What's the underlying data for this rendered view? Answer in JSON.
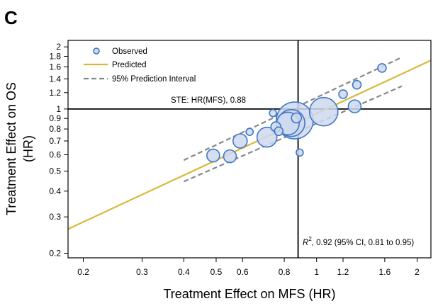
{
  "panel_label": "C",
  "chart_data": {
    "type": "scatter",
    "xscale": "log",
    "yscale": "log",
    "xlim": [
      0.18,
      2.2
    ],
    "ylim": [
      0.19,
      2.15
    ],
    "xlabel": "Treatment Effect on MFS (HR)",
    "ylabel_line1": "Treatment Effect on OS",
    "ylabel_line2": "(HR)",
    "xticks": [
      0.2,
      0.3,
      0.4,
      0.5,
      0.6,
      0.8,
      1,
      1.2,
      1.6,
      2
    ],
    "xtick_labels": [
      "0.2",
      "0.3",
      "0.4",
      "0.5",
      "0.6",
      "0.8",
      "1",
      "1.2",
      "1.6",
      "2"
    ],
    "yticks": [
      0.2,
      0.3,
      0.4,
      0.5,
      0.6,
      0.7,
      0.8,
      0.9,
      1,
      1.2,
      1.4,
      1.6,
      1.8,
      2
    ],
    "ytick_labels": [
      "0.2",
      "0.3",
      "0.4",
      "0.5",
      "0.6",
      "0.7",
      "0.8",
      "0.9",
      "1",
      "1.2",
      "1.4",
      "1.6",
      "1.8",
      "2"
    ],
    "legend": {
      "position": "top-left",
      "entries": [
        {
          "label": "Observed",
          "kind": "circle"
        },
        {
          "label": "Predicted",
          "kind": "solid-line"
        },
        {
          "label": "95% Prediction Interval",
          "kind": "dashed-line"
        }
      ]
    },
    "colors": {
      "marker_fill": "#cfd8ee",
      "marker_stroke": "#3f78c4",
      "predicted_line": "#d9b93a",
      "interval_line": "#888888",
      "reference_line": "#000000"
    },
    "reference_lines": {
      "x": 0.88,
      "y": 1
    },
    "ste_annotation": "STE: HR(MFS), 0.88",
    "r2_annotation": {
      "symbol": "R",
      "superscript": "2",
      "text": ", 0.92 (95% CI, 0.81 to 0.95)"
    },
    "predicted": {
      "x": [
        0.18,
        2.2
      ],
      "y": [
        0.262,
        1.72
      ]
    },
    "prediction_interval_upper": {
      "x": [
        0.4,
        1.8
      ],
      "y": [
        0.565,
        1.78
      ]
    },
    "prediction_interval_lower": {
      "x": [
        0.4,
        1.8
      ],
      "y": [
        0.445,
        1.29
      ]
    },
    "series": [
      {
        "x": [
          0.49,
          0.55,
          0.59,
          0.63,
          0.71,
          0.74,
          0.77,
          0.755,
          0.82,
          0.86,
          0.84,
          0.87,
          0.89,
          1.05,
          1.2,
          1.3,
          1.32,
          1.57
        ],
        "y": [
          0.595,
          0.59,
          0.7,
          0.775,
          0.73,
          0.955,
          0.78,
          0.82,
          0.85,
          0.88,
          0.855,
          0.905,
          0.615,
          0.97,
          1.18,
          1.03,
          1.31,
          1.58
        ],
        "size": [
          9,
          9,
          10,
          5,
          14,
          5,
          6,
          7,
          16,
          26,
          19,
          7,
          5,
          20,
          6,
          9,
          6,
          6
        ]
      }
    ]
  }
}
